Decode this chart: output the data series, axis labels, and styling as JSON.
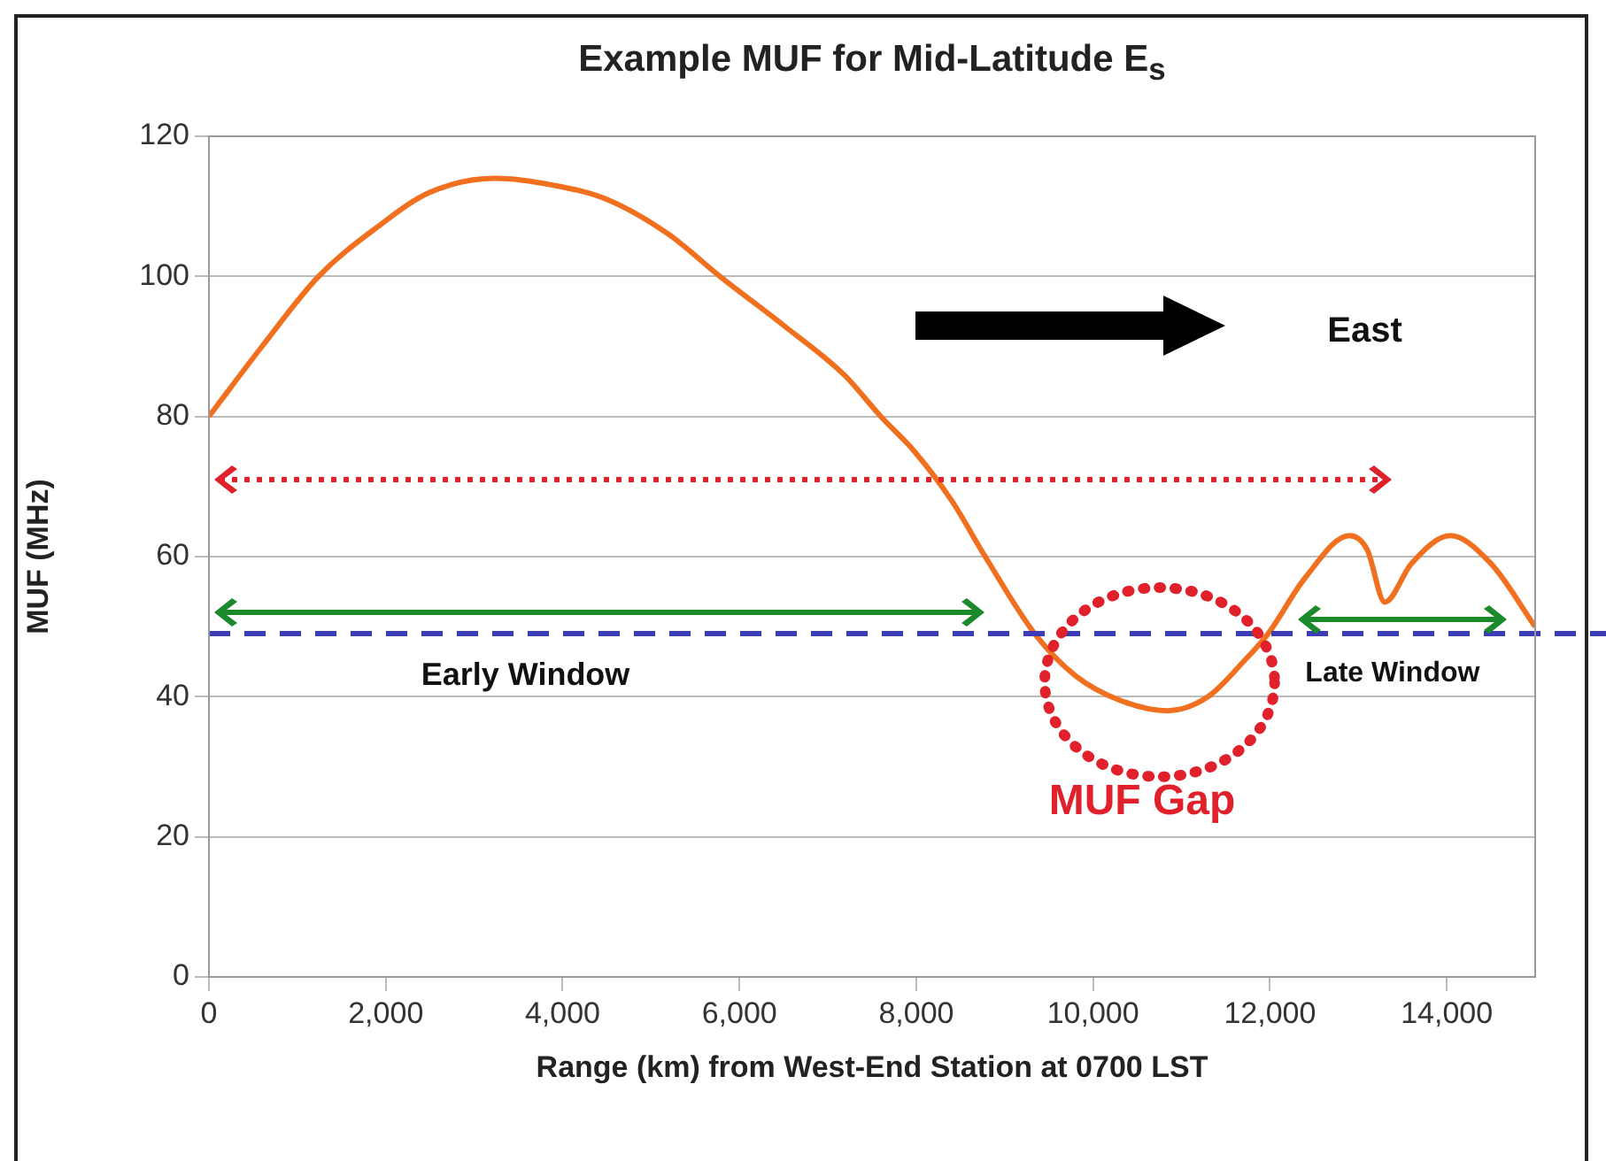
{
  "chart_data": {
    "type": "line",
    "title": "Example MUF for Mid-Latitude E$_{s}$",
    "xlabel": "Range (km) from West-End Station at 0700 LST",
    "ylabel": "MUF (MHz)",
    "x": [
      0,
      600,
      1240,
      1900,
      2500,
      3240,
      3900,
      4500,
      5200,
      5780,
      6500,
      7180,
      7600,
      7980,
      8400,
      8780,
      9340,
      9800,
      10300,
      10840,
      11300,
      11700,
      11980,
      12400,
      12900,
      13100,
      13300,
      13600,
      14040,
      14500,
      15000
    ],
    "series": [
      {
        "color": "#f07020",
        "values": [
          80,
          90,
          100,
          107,
          112,
          114,
          113,
          111,
          106,
          100,
          93,
          86,
          80,
          75,
          68,
          60,
          49,
          43,
          39.5,
          38,
          40,
          45,
          49,
          57,
          63,
          61,
          53.5,
          59,
          63,
          59,
          50
        ]
      }
    ],
    "xlim": [
      0,
      15000
    ],
    "ylim": [
      0,
      120
    ],
    "xticks": [
      0,
      {
        "value": 2000,
        "label": "2,000"
      },
      {
        "value": 4000,
        "label": "4,000"
      },
      {
        "value": 6000,
        "label": "6,000"
      },
      {
        "value": 8000,
        "label": "8,000"
      },
      {
        "value": 10000,
        "label": "10,000"
      },
      {
        "value": 12000,
        "label": "12,000"
      },
      {
        "value": 14000,
        "label": "14,000"
      }
    ],
    "yticks": [
      0,
      20,
      40,
      60,
      80,
      100,
      120
    ],
    "grid": "y",
    "marker": "none",
    "line_style": "solid",
    "legend": false,
    "ref_lines": [
      {
        "axis": "y",
        "value": 71,
        "color": "#e0202a",
        "line_style": "dotted"
      },
      {
        "axis": "y",
        "value": 49,
        "color": "#3c3cb4",
        "line_style": "dashed"
      }
    ],
    "annotations": [
      "East",
      "Early Window",
      "Late Window",
      "MUF Gap"
    ]
  }
}
